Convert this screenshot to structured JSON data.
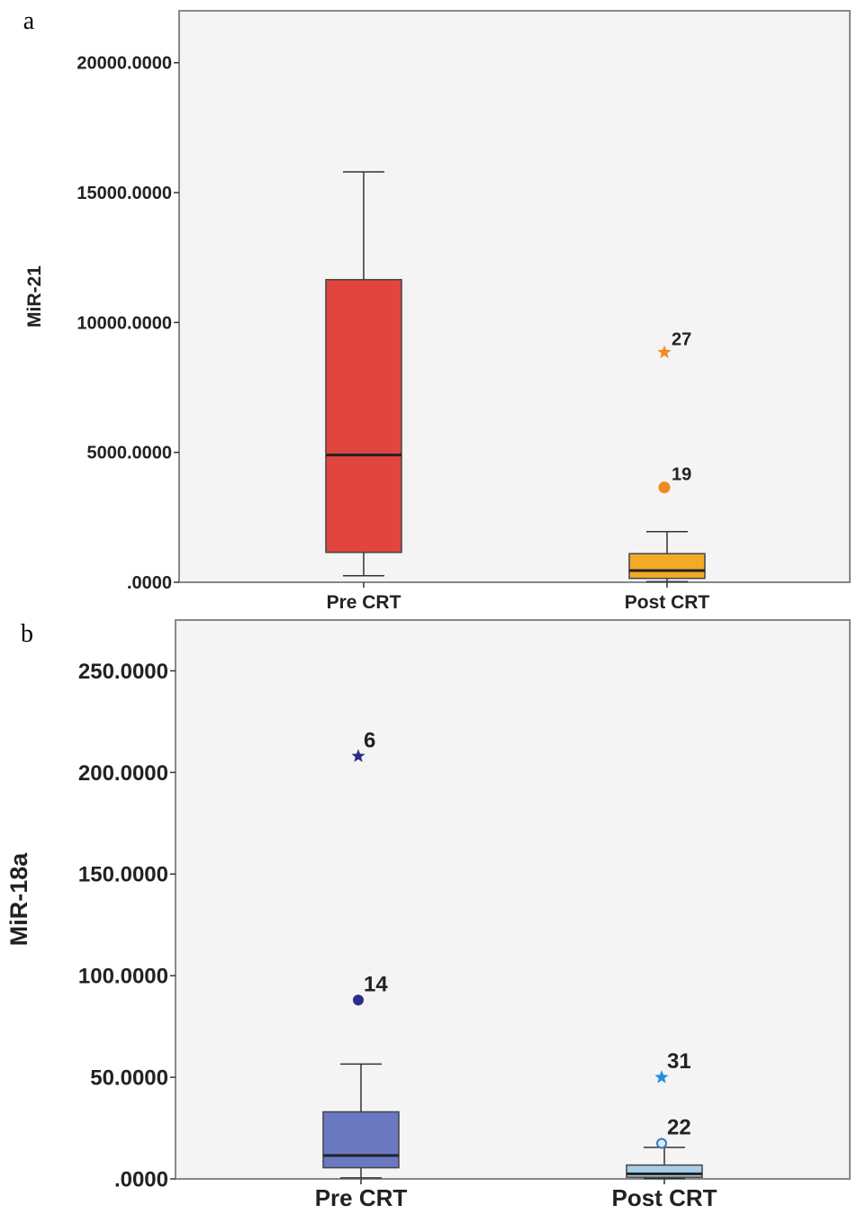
{
  "chart_data": [
    {
      "panel_label": "a",
      "type": "boxplot",
      "ylabel": "MiR-21",
      "xlabel": "",
      "ylim": [
        0,
        22000
      ],
      "yticks": [
        0,
        5000,
        10000,
        15000,
        20000
      ],
      "ytick_labels": [
        ".0000",
        "5000.0000",
        "10000.0000",
        "15000.0000",
        "20000.0000"
      ],
      "grid": false,
      "categories": [
        "Pre CRT",
        "Post CRT"
      ],
      "boxes": [
        {
          "category": "Pre CRT",
          "whisker_low": 250,
          "q1": 1150,
          "median": 4900,
          "q3": 11650,
          "whisker_high": 15800,
          "color": "#e0463f"
        },
        {
          "category": "Post CRT",
          "whisker_low": 20,
          "q1": 150,
          "median": 450,
          "q3": 1100,
          "whisker_high": 1950,
          "color": "#f2aa28"
        }
      ],
      "outliers": [
        {
          "category": "Post CRT",
          "value": 8850,
          "label": "27",
          "marker": "star",
          "color": "#f08a1c"
        },
        {
          "category": "Post CRT",
          "value": 3650,
          "label": "19",
          "marker": "circle",
          "color": "#f08a1c"
        }
      ]
    },
    {
      "panel_label": "b",
      "type": "boxplot",
      "ylabel": "MiR-18a",
      "xlabel": "",
      "ylim": [
        0,
        275
      ],
      "yticks": [
        0,
        50,
        100,
        150,
        200,
        250
      ],
      "ytick_labels": [
        ".0000",
        "50.0000",
        "100.0000",
        "150.0000",
        "200.0000",
        "250.0000"
      ],
      "grid": false,
      "categories": [
        "Pre CRT",
        "Post CRT"
      ],
      "boxes": [
        {
          "category": "Pre CRT",
          "whisker_low": 0.5,
          "q1": 5.5,
          "median": 11.5,
          "q3": 33,
          "whisker_high": 56.5,
          "color": "#6b78c2"
        },
        {
          "category": "Post CRT",
          "whisker_low": 0.2,
          "q1": 0.8,
          "median": 2.5,
          "q3": 6.8,
          "whisker_high": 15.5,
          "color": "#a9cde8"
        }
      ],
      "outliers": [
        {
          "category": "Pre CRT",
          "value": 208,
          "label": "6",
          "marker": "star",
          "color": "#2c2c8c"
        },
        {
          "category": "Pre CRT",
          "value": 88,
          "label": "14",
          "marker": "circle",
          "color": "#2c2c8c"
        },
        {
          "category": "Post CRT",
          "value": 50,
          "label": "31",
          "marker": "star",
          "color": "#1e8ee0"
        },
        {
          "category": "Post CRT",
          "value": 17.5,
          "label": "22",
          "marker": "open-circle",
          "color": "#3a7ab8"
        }
      ]
    }
  ]
}
